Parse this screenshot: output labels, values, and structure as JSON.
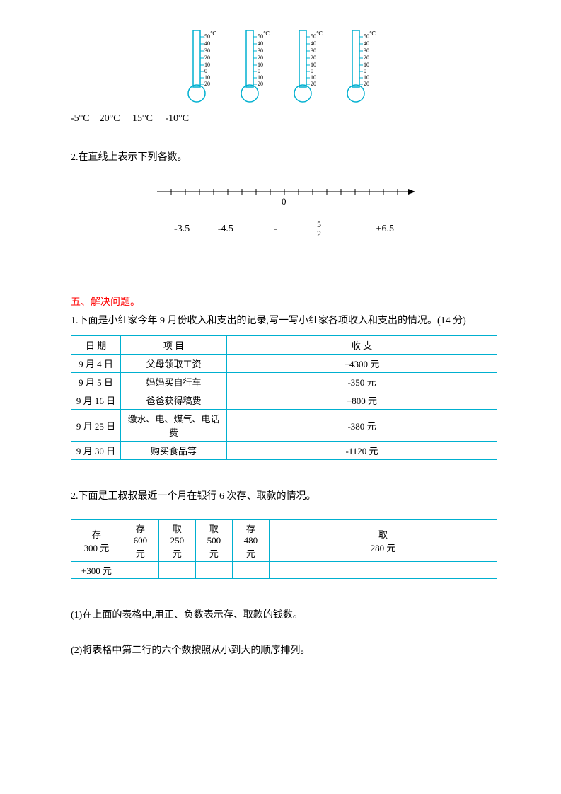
{
  "thermo": {
    "scale_labels": [
      "50",
      "40",
      "30",
      "20",
      "10",
      "0",
      "10",
      "20"
    ],
    "unit": "℃",
    "stroke": "#00b0d0",
    "text_color": "#000000"
  },
  "temps": {
    "t1": "-5°C",
    "t2": "20°C",
    "t3": "15°C",
    "t4": "-10°C"
  },
  "q2": {
    "text": "2.在直线上表示下列各数。",
    "zero": "0",
    "values": {
      "a": "-3.5",
      "b": "-4.5",
      "c_prefix": "-",
      "c_num": "5",
      "c_den": "2",
      "d": "+6.5"
    }
  },
  "section5": {
    "title": "五、解决问题。"
  },
  "p1": {
    "text": "1.下面是小红家今年 9 月份收入和支出的记录,写一写小红家各项收入和支出的情况。(14 分)",
    "headers": {
      "date": "日   期",
      "item": "项   目",
      "bal": "收   支"
    },
    "rows": [
      {
        "date": "9 月 4 日",
        "item": "父母领取工资",
        "bal": "+4300 元"
      },
      {
        "date": "9 月 5 日",
        "item": "妈妈买自行车",
        "bal": "-350 元"
      },
      {
        "date": "9 月 16 日",
        "item": "爸爸获得稿费",
        "bal": "+800 元"
      },
      {
        "date": "9 月 25 日",
        "item": "缴水、电、煤气、电话费",
        "bal": "-380 元"
      },
      {
        "date": "9 月 30 日",
        "item": "购买食品等",
        "bal": "-1120 元"
      }
    ]
  },
  "p2": {
    "text": "2.下面是王叔叔最近一个月在银行 6 次存、取款的情况。",
    "row1": {
      "c0": "存\n300 元",
      "c1": "存\n600\n元",
      "c2": "取\n250\n元",
      "c3": "取\n500\n元",
      "c4": "存\n480\n元",
      "c5": "取\n280 元"
    },
    "row2": {
      "c0": "+300 元"
    },
    "sub1": " (1)在上面的表格中,用正、负数表示存、取款的钱数。",
    "sub2": "(2)将表格中第二行的六个数按照从小到大的顺序排列。"
  }
}
